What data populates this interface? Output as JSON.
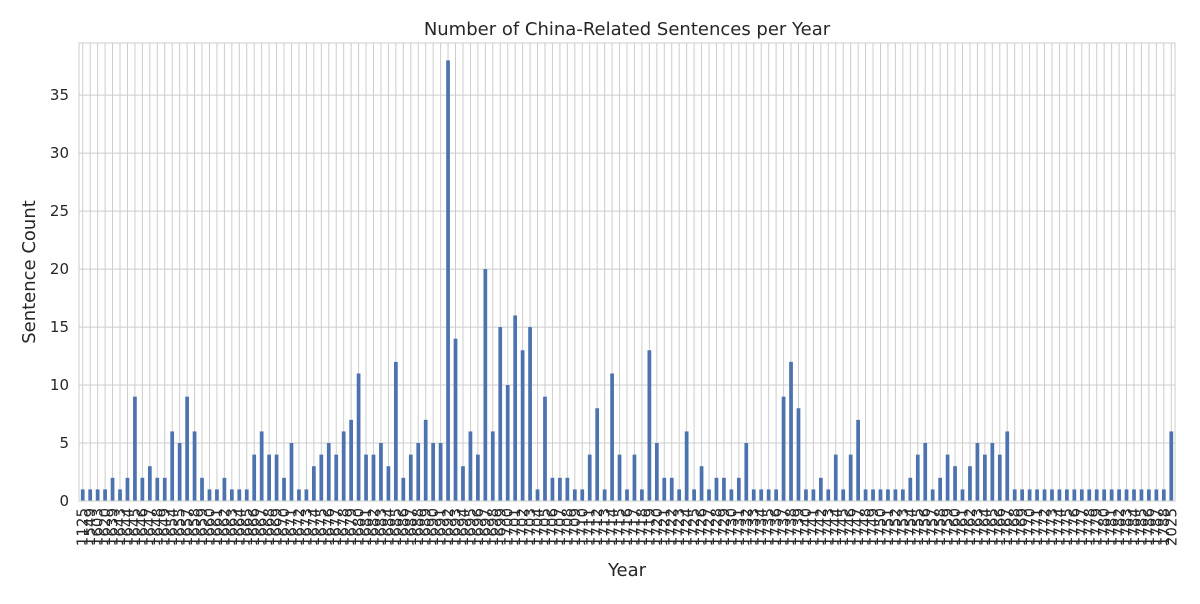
{
  "chart_data": {
    "type": "bar",
    "title": "Number of China-Related Sentences per Year",
    "xlabel": "Year",
    "ylabel": "Sentence Count",
    "ylim": [
      0,
      39.5
    ],
    "yticks": [
      0,
      5,
      10,
      15,
      20,
      25,
      30,
      35
    ],
    "grid": true,
    "bar_color": "#4c72b0",
    "categories": [
      "1125",
      "1549",
      "1603",
      "1620",
      "1639",
      "1643",
      "1644",
      "1645",
      "1646",
      "1647",
      "1648",
      "1649",
      "1654",
      "1655",
      "1657",
      "1658",
      "1659",
      "1660",
      "1661",
      "1662",
      "1663",
      "1664",
      "1665",
      "1666",
      "1667",
      "1668",
      "1669",
      "1670",
      "1671",
      "1672",
      "1673",
      "1674",
      "1675",
      "1676",
      "1677",
      "1678",
      "1679",
      "1680",
      "1681",
      "1682",
      "1683",
      "1684",
      "1685",
      "1686",
      "1687",
      "1688",
      "1689",
      "1690",
      "1691",
      "1692",
      "1693",
      "1694",
      "1695",
      "1696",
      "1697",
      "1698",
      "1699",
      "1700",
      "1701",
      "1702",
      "1703",
      "1704",
      "1705",
      "1706",
      "1707",
      "1708",
      "1709",
      "1710",
      "1711",
      "1712",
      "1713",
      "1714",
      "1715",
      "1716",
      "1717",
      "1718",
      "1719",
      "1720",
      "1721",
      "1722",
      "1723",
      "1724",
      "1725",
      "1726",
      "1727",
      "1728",
      "1729",
      "1730",
      "1731",
      "1732",
      "1733",
      "1734",
      "1735",
      "1736",
      "1737",
      "1738",
      "1739",
      "1740",
      "1741",
      "1742",
      "1743",
      "1744",
      "1745",
      "1746",
      "1747",
      "1748",
      "1749",
      "1750",
      "1751",
      "1752",
      "1753",
      "1754",
      "1755",
      "1756",
      "1757",
      "1758",
      "1759",
      "1760",
      "1761",
      "1762",
      "1763",
      "1764",
      "1765",
      "1766",
      "1767",
      "1768",
      "1769",
      "1770",
      "1771",
      "1772",
      "1773",
      "1774",
      "1775",
      "1776",
      "1777",
      "1778",
      "1779",
      "1780",
      "1781",
      "1782",
      "1783",
      "1784",
      "1785",
      "1786",
      "1787",
      "1788",
      "2025"
    ],
    "values": [
      1,
      1,
      1,
      1,
      2,
      1,
      2,
      9,
      2,
      3,
      2,
      2,
      6,
      5,
      9,
      6,
      2,
      1,
      1,
      2,
      1,
      1,
      1,
      4,
      6,
      4,
      4,
      2,
      5,
      1,
      1,
      3,
      4,
      5,
      4,
      6,
      7,
      11,
      4,
      4,
      5,
      3,
      12,
      2,
      4,
      5,
      7,
      5,
      5,
      38,
      14,
      3,
      6,
      4,
      20,
      6,
      15,
      10,
      16,
      13,
      15,
      1,
      9,
      2,
      2,
      2,
      1,
      1,
      4,
      8,
      1,
      11,
      4,
      1,
      4,
      1,
      13,
      5,
      2,
      2,
      1,
      6,
      1,
      3,
      1,
      2,
      2,
      1,
      2,
      5,
      1,
      1,
      1,
      1,
      9,
      12,
      8,
      1,
      1,
      2,
      1,
      4,
      1,
      4,
      7,
      1,
      1,
      1,
      1,
      1,
      1,
      2,
      4,
      5,
      1,
      2,
      4,
      3,
      1,
      3,
      5,
      4,
      5,
      4,
      6,
      1,
      1,
      1,
      1,
      1,
      1,
      1,
      1,
      1,
      1,
      1,
      1,
      1,
      1,
      1,
      1,
      1,
      1,
      1,
      1,
      1,
      6
    ]
  }
}
